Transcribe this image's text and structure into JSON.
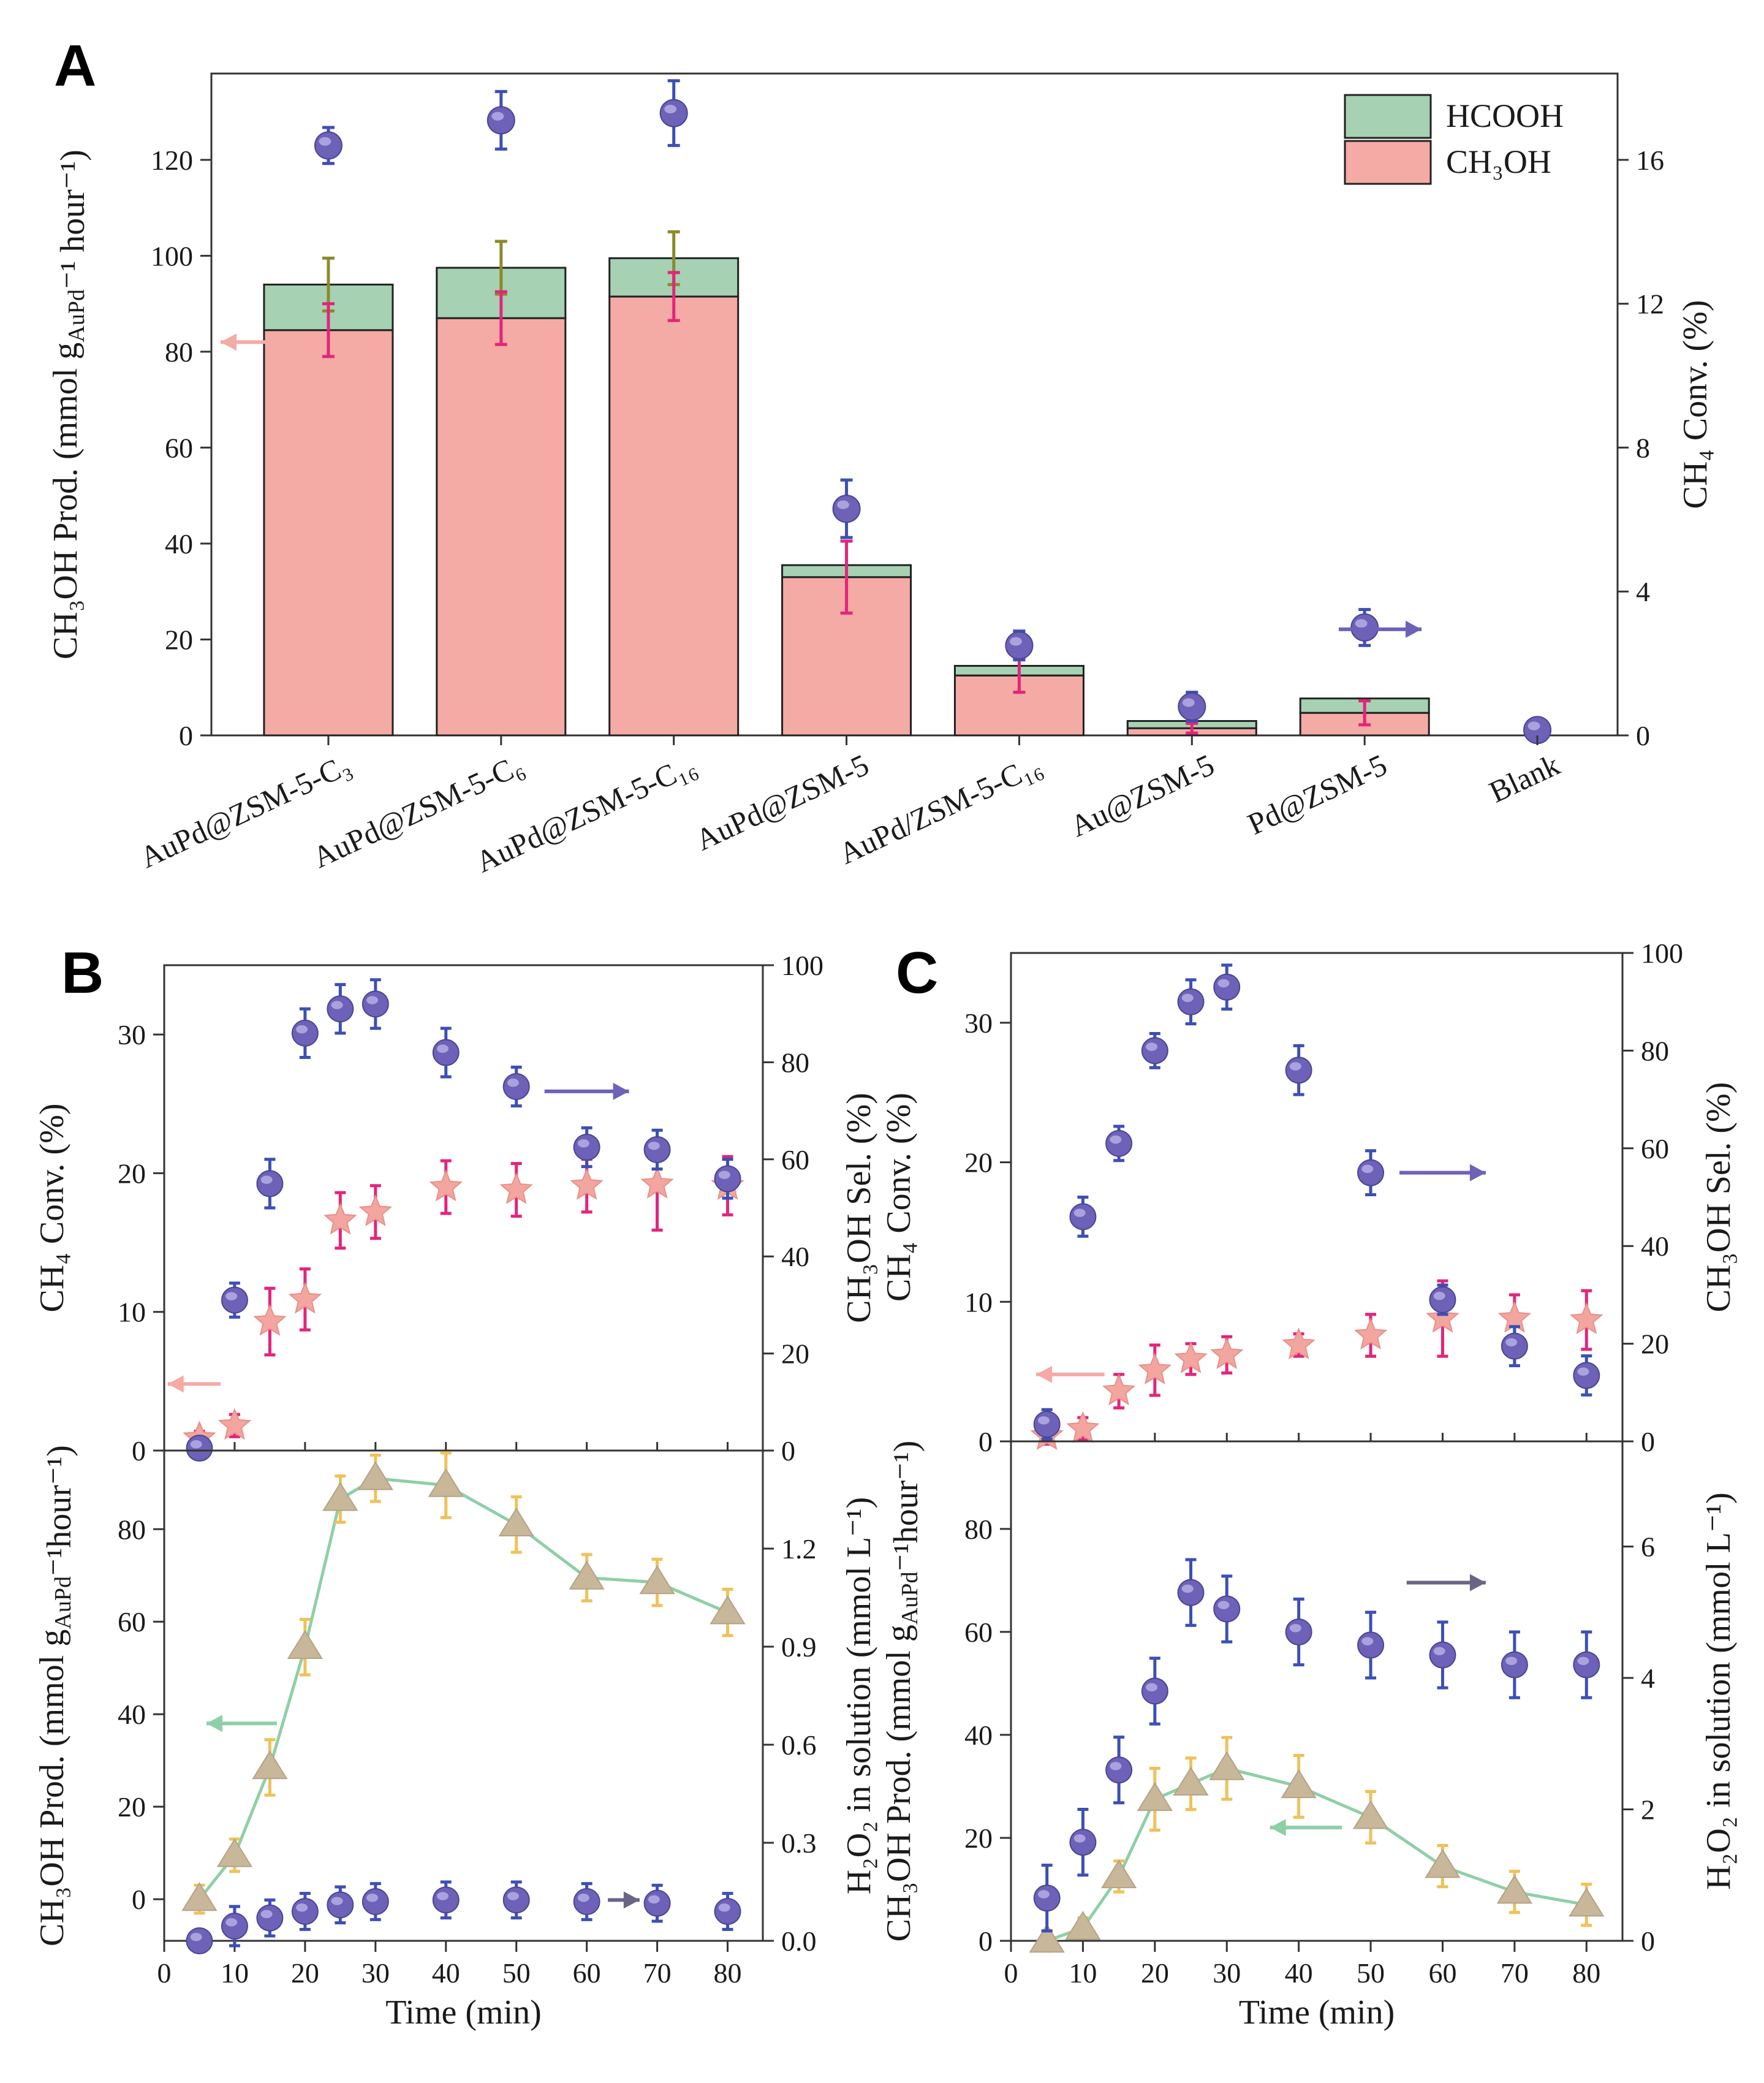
{
  "figure": {
    "panel_labels": [
      "A",
      "B",
      "C"
    ]
  },
  "colors": {
    "ch3oh_bar": "#f4aaa5",
    "hcooh_bar": "#a6d1b3",
    "bar_edge": "#222222",
    "ch3oh_err": "#e3257a",
    "hcooh_err": "#8a8a2a",
    "conv_point": "#6d62b8",
    "conv_err": "#3d4fb5",
    "star_point": "#f2a69f",
    "tri_point": "#c9b79a",
    "tri_err": "#f0c15a",
    "tri_line": "#8fcfa7",
    "arrow_blue": "#6d62b8",
    "arrow_pink": "#f4aaa5",
    "arrow_green": "#8fcfa7",
    "arrow_gray": "#6a6585"
  },
  "chart_data": [
    {
      "id": "A",
      "type": "bar",
      "stacked": true,
      "categories": [
        "AuPd@ZSM-5-C₃",
        "AuPd@ZSM-5-C₆",
        "AuPd@ZSM-5-C₁₆",
        "AuPd@ZSM-5",
        "AuPd/ZSM-5-C₁₆",
        "Au@ZSM-5",
        "Pd@ZSM-5",
        "Blank"
      ],
      "series": [
        {
          "name": "CH₃OH",
          "values": [
            84.5,
            87,
            91.5,
            33,
            12.5,
            1.5,
            4.7,
            0
          ],
          "errors": [
            5.5,
            5.5,
            5,
            7.5,
            3.5,
            1,
            2.5,
            0
          ]
        },
        {
          "name": "HCOOH",
          "values": [
            9.5,
            10.5,
            8,
            2.5,
            2,
            1.5,
            3,
            0
          ],
          "errors": [
            5.5,
            5.5,
            5.5,
            0,
            0,
            0,
            0,
            0
          ]
        }
      ],
      "right_series": {
        "name": "CH₄ Conv.",
        "values": [
          16.4,
          17.1,
          17.3,
          6.3,
          2.5,
          0.8,
          3.0,
          0.15
        ],
        "errors": [
          0.5,
          0.8,
          0.9,
          0.8,
          0.4,
          0.4,
          0.5,
          0
        ]
      },
      "legend": {
        "position": "top-right",
        "entries": [
          "HCOOH",
          "CH₃OH"
        ]
      },
      "ylabel_left": "CH₃OH Prod. (mmol g<sub>AuPd</sub>⁻¹ hour⁻¹)",
      "ylabel_right": "CH₄ Conv. (%)",
      "ylim_left": [
        0,
        138
      ],
      "ylim_right": [
        0,
        18.4
      ],
      "yticks_left": [
        "0",
        "20",
        "40",
        "60",
        "80",
        "100",
        "120"
      ],
      "yticks_right": [
        "0",
        "4",
        "8",
        "12",
        "16"
      ]
    },
    {
      "id": "B-top",
      "type": "scatter",
      "x": [
        5,
        10,
        15,
        20,
        25,
        30,
        40,
        50,
        60,
        70,
        80
      ],
      "series": [
        {
          "name": "CH₄ Conv.",
          "axis": "left",
          "marker": "star",
          "values": [
            0.9,
            1.8,
            9.3,
            10.9,
            16.6,
            17.2,
            19.0,
            18.8,
            19.1,
            19.2,
            19.1
          ],
          "errors": [
            0.5,
            0.8,
            2.4,
            2.2,
            2.0,
            1.9,
            1.9,
            1.9,
            1.9,
            3.3,
            2.1
          ]
        },
        {
          "name": "CH₃OH Sel.",
          "axis": "right",
          "marker": "circle",
          "values": [
            0.5,
            31,
            55,
            86,
            91,
            92,
            82,
            75,
            62.5,
            62,
            56
          ],
          "errors": [
            0.5,
            3.5,
            5,
            5,
            5,
            5,
            5,
            4,
            4,
            4,
            4
          ]
        }
      ],
      "ylabel_left": "CH₄ Conv. (%)",
      "ylabel_right": "CH₃OH Sel. (%)",
      "ylim_left": [
        0,
        35
      ],
      "ylim_right": [
        0,
        100
      ],
      "yticks_left": [
        "0",
        "10",
        "20",
        "30"
      ],
      "yticks_right": [
        "0",
        "20",
        "40",
        "60",
        "80",
        "100"
      ]
    },
    {
      "id": "B-bottom",
      "type": "line",
      "x": [
        5,
        10,
        15,
        20,
        25,
        30,
        40,
        50,
        60,
        70,
        80
      ],
      "series": [
        {
          "name": "CH₃OH Prod.",
          "axis": "left",
          "marker": "triangle",
          "values": [
            0,
            9.5,
            28.5,
            54.5,
            86.5,
            91,
            89.5,
            81,
            69.5,
            68.5,
            62
          ],
          "errors": [
            3,
            3.5,
            6,
            6,
            5,
            5,
            7,
            6,
            5,
            5,
            5
          ]
        },
        {
          "name": "H₂O₂ in solution",
          "axis": "right",
          "marker": "circle",
          "values": [
            0.0,
            0.045,
            0.07,
            0.09,
            0.11,
            0.12,
            0.125,
            0.125,
            0.12,
            0.115,
            0.09
          ],
          "errors": [
            0,
            0.06,
            0.055,
            0.055,
            0.055,
            0.055,
            0.055,
            0.055,
            0.055,
            0.055,
            0.055
          ]
        }
      ],
      "xlabel": "Time (min)",
      "ylabel_left": "CH₃OH Prod. (mmol g<sub>AuPd</sub>⁻¹hour⁻¹)",
      "ylabel_right": "H₂O₂ in solution (mmol L⁻¹)",
      "xlim": [
        0,
        85
      ],
      "ylim_left": [
        -9,
        97
      ],
      "ylim_right": [
        0,
        1.5
      ],
      "xticks": [
        "0",
        "10",
        "20",
        "30",
        "40",
        "50",
        "60",
        "70",
        "80"
      ],
      "yticks_left": [
        "0",
        "20",
        "40",
        "60",
        "80"
      ],
      "yticks_right": [
        "0.0",
        "0.3",
        "0.6",
        "0.9",
        "1.2"
      ]
    },
    {
      "id": "C-top",
      "type": "scatter",
      "x": [
        5,
        10,
        15,
        20,
        25,
        30,
        40,
        50,
        60,
        70,
        80
      ],
      "series": [
        {
          "name": "CH₄ Conv.",
          "axis": "left",
          "marker": "star",
          "values": [
            0.4,
            0.9,
            3.6,
            5.1,
            5.9,
            6.2,
            6.9,
            7.6,
            8.8,
            8.8,
            8.7
          ],
          "errors": [
            0.6,
            0.8,
            1.2,
            1.8,
            1.1,
            1.3,
            0.8,
            1.5,
            2.7,
            1.7,
            2.1
          ]
        },
        {
          "name": "CH₃OH Sel.",
          "axis": "right",
          "marker": "circle",
          "values": [
            3.5,
            46,
            61,
            80,
            90,
            93,
            76,
            55,
            29,
            19.5,
            13.5
          ],
          "errors": [
            3,
            4,
            3.5,
            3.5,
            4.5,
            4.5,
            5,
            4.5,
            3,
            4,
            4
          ]
        }
      ],
      "ylabel_left": "CH₄ Conv. (%)",
      "ylabel_right": "CH₃OH Sel. (%)",
      "ylim_left": [
        0,
        35
      ],
      "ylim_right": [
        0,
        100
      ],
      "yticks_left": [
        "0",
        "10",
        "20",
        "30"
      ],
      "yticks_right": [
        "0",
        "20",
        "40",
        "60",
        "80",
        "100"
      ]
    },
    {
      "id": "C-bottom",
      "type": "line",
      "x": [
        5,
        10,
        15,
        20,
        25,
        30,
        40,
        50,
        60,
        70,
        80
      ],
      "series": [
        {
          "name": "CH₃OH Prod.",
          "axis": "left",
          "marker": "triangle",
          "values": [
            0,
            2.5,
            12.5,
            27.5,
            30.5,
            33.5,
            30,
            24,
            14.5,
            9.5,
            7
          ],
          "errors": [
            2,
            2,
            3,
            6,
            5,
            6,
            6,
            5,
            4,
            4,
            4
          ]
        },
        {
          "name": "H₂O₂ in solution",
          "axis": "right",
          "marker": "circle",
          "values": [
            0.65,
            1.5,
            2.6,
            3.8,
            5.3,
            5.05,
            4.7,
            4.5,
            4.35,
            4.2,
            4.2
          ],
          "errors": [
            0.5,
            0.5,
            0.5,
            0.5,
            0.5,
            0.5,
            0.5,
            0.5,
            0.5,
            0.5,
            0.5
          ]
        }
      ],
      "xlabel": "Time (min)",
      "ylabel_left": "CH₃OH Prod. (mmol g<sub>AuPd</sub>⁻¹hour⁻¹)",
      "ylabel_right": "H₂O₂ in solution (mmol L⁻¹)",
      "xlim": [
        0,
        85
      ],
      "ylim_left": [
        0,
        97
      ],
      "ylim_right": [
        0,
        7.6
      ],
      "xticks": [
        "0",
        "10",
        "20",
        "30",
        "40",
        "50",
        "60",
        "70",
        "80"
      ],
      "yticks_left": [
        "0",
        "20",
        "40",
        "60",
        "80"
      ],
      "yticks_right": [
        "0",
        "2",
        "4",
        "6"
      ]
    }
  ]
}
